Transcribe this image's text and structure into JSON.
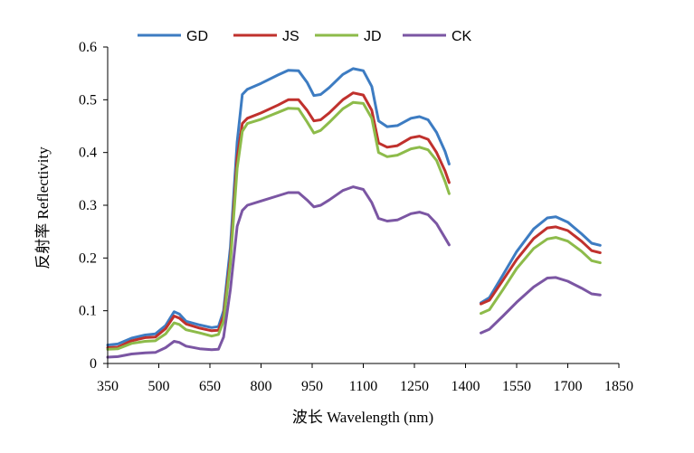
{
  "chart_data": {
    "type": "line",
    "title": "",
    "xlabel": "波长 Wavelength (nm)",
    "ylabel": "反射率 Reflectivity",
    "xlim": [
      350,
      1850
    ],
    "ylim": [
      0,
      0.6
    ],
    "xticks": [
      350,
      500,
      650,
      800,
      950,
      1100,
      1250,
      1400,
      1550,
      1700,
      1850
    ],
    "yticks": [
      0,
      0.1,
      0.2,
      0.3,
      0.4,
      0.5,
      0.6
    ],
    "ytick_labels": [
      "0",
      "0.1",
      "0.2",
      "0.3",
      "0.4",
      "0.5",
      "0.6"
    ],
    "grid": false,
    "legend_position": "top",
    "series": [
      {
        "name": "GD",
        "color": "#3d7cc2",
        "segments": [
          [
            [
              350,
              0.035
            ],
            [
              380,
              0.037
            ],
            [
              420,
              0.048
            ],
            [
              460,
              0.054
            ],
            [
              490,
              0.056
            ],
            [
              520,
              0.072
            ],
            [
              545,
              0.098
            ],
            [
              560,
              0.094
            ],
            [
              580,
              0.08
            ],
            [
              620,
              0.073
            ],
            [
              655,
              0.068
            ],
            [
              675,
              0.07
            ],
            [
              690,
              0.1
            ],
            [
              710,
              0.22
            ],
            [
              730,
              0.42
            ],
            [
              745,
              0.51
            ],
            [
              760,
              0.52
            ],
            [
              800,
              0.531
            ],
            [
              850,
              0.547
            ],
            [
              880,
              0.556
            ],
            [
              910,
              0.555
            ],
            [
              935,
              0.533
            ],
            [
              955,
              0.508
            ],
            [
              975,
              0.51
            ],
            [
              1000,
              0.523
            ],
            [
              1040,
              0.548
            ],
            [
              1070,
              0.559
            ],
            [
              1100,
              0.555
            ],
            [
              1125,
              0.525
            ],
            [
              1145,
              0.46
            ],
            [
              1170,
              0.449
            ],
            [
              1200,
              0.451
            ],
            [
              1240,
              0.465
            ],
            [
              1265,
              0.468
            ],
            [
              1290,
              0.462
            ],
            [
              1315,
              0.438
            ],
            [
              1340,
              0.402
            ],
            [
              1352,
              0.378
            ]
          ],
          [
            [
              1445,
              0.115
            ],
            [
              1470,
              0.125
            ],
            [
              1510,
              0.168
            ],
            [
              1550,
              0.212
            ],
            [
              1600,
              0.255
            ],
            [
              1640,
              0.276
            ],
            [
              1665,
              0.278
            ],
            [
              1700,
              0.268
            ],
            [
              1740,
              0.246
            ],
            [
              1770,
              0.228
            ],
            [
              1795,
              0.224
            ]
          ]
        ]
      },
      {
        "name": "JS",
        "color": "#c0312d",
        "segments": [
          [
            [
              350,
              0.03
            ],
            [
              380,
              0.031
            ],
            [
              420,
              0.043
            ],
            [
              460,
              0.049
            ],
            [
              490,
              0.05
            ],
            [
              520,
              0.066
            ],
            [
              545,
              0.09
            ],
            [
              560,
              0.086
            ],
            [
              580,
              0.075
            ],
            [
              620,
              0.067
            ],
            [
              655,
              0.062
            ],
            [
              675,
              0.063
            ],
            [
              690,
              0.09
            ],
            [
              710,
              0.2
            ],
            [
              730,
              0.39
            ],
            [
              745,
              0.455
            ],
            [
              760,
              0.465
            ],
            [
              800,
              0.475
            ],
            [
              850,
              0.49
            ],
            [
              880,
              0.5
            ],
            [
              910,
              0.5
            ],
            [
              935,
              0.48
            ],
            [
              955,
              0.46
            ],
            [
              975,
              0.462
            ],
            [
              1000,
              0.475
            ],
            [
              1040,
              0.5
            ],
            [
              1070,
              0.513
            ],
            [
              1100,
              0.509
            ],
            [
              1125,
              0.48
            ],
            [
              1145,
              0.418
            ],
            [
              1170,
              0.41
            ],
            [
              1200,
              0.413
            ],
            [
              1240,
              0.428
            ],
            [
              1265,
              0.431
            ],
            [
              1290,
              0.425
            ],
            [
              1315,
              0.4
            ],
            [
              1340,
              0.365
            ],
            [
              1352,
              0.343
            ]
          ],
          [
            [
              1445,
              0.113
            ],
            [
              1470,
              0.12
            ],
            [
              1510,
              0.158
            ],
            [
              1550,
              0.197
            ],
            [
              1600,
              0.237
            ],
            [
              1640,
              0.257
            ],
            [
              1665,
              0.259
            ],
            [
              1700,
              0.252
            ],
            [
              1740,
              0.232
            ],
            [
              1770,
              0.214
            ],
            [
              1795,
              0.21
            ]
          ]
        ]
      },
      {
        "name": "JD",
        "color": "#8dbb4a",
        "segments": [
          [
            [
              350,
              0.027
            ],
            [
              380,
              0.028
            ],
            [
              420,
              0.038
            ],
            [
              460,
              0.042
            ],
            [
              490,
              0.043
            ],
            [
              520,
              0.056
            ],
            [
              545,
              0.077
            ],
            [
              560,
              0.074
            ],
            [
              580,
              0.064
            ],
            [
              620,
              0.058
            ],
            [
              655,
              0.052
            ],
            [
              675,
              0.055
            ],
            [
              690,
              0.08
            ],
            [
              710,
              0.19
            ],
            [
              730,
              0.37
            ],
            [
              745,
              0.44
            ],
            [
              760,
              0.455
            ],
            [
              800,
              0.463
            ],
            [
              850,
              0.476
            ],
            [
              880,
              0.484
            ],
            [
              910,
              0.483
            ],
            [
              935,
              0.458
            ],
            [
              955,
              0.437
            ],
            [
              975,
              0.442
            ],
            [
              1000,
              0.457
            ],
            [
              1040,
              0.483
            ],
            [
              1070,
              0.495
            ],
            [
              1100,
              0.493
            ],
            [
              1125,
              0.465
            ],
            [
              1145,
              0.4
            ],
            [
              1170,
              0.392
            ],
            [
              1200,
              0.395
            ],
            [
              1240,
              0.407
            ],
            [
              1265,
              0.41
            ],
            [
              1290,
              0.405
            ],
            [
              1315,
              0.385
            ],
            [
              1340,
              0.345
            ],
            [
              1352,
              0.322
            ]
          ],
          [
            [
              1445,
              0.095
            ],
            [
              1470,
              0.102
            ],
            [
              1510,
              0.14
            ],
            [
              1550,
              0.18
            ],
            [
              1600,
              0.218
            ],
            [
              1640,
              0.236
            ],
            [
              1665,
              0.239
            ],
            [
              1700,
              0.232
            ],
            [
              1740,
              0.213
            ],
            [
              1770,
              0.195
            ],
            [
              1795,
              0.191
            ]
          ]
        ]
      },
      {
        "name": "CK",
        "color": "#7b56a3",
        "segments": [
          [
            [
              350,
              0.012
            ],
            [
              380,
              0.013
            ],
            [
              420,
              0.018
            ],
            [
              460,
              0.02
            ],
            [
              490,
              0.021
            ],
            [
              520,
              0.03
            ],
            [
              545,
              0.042
            ],
            [
              560,
              0.04
            ],
            [
              580,
              0.033
            ],
            [
              620,
              0.028
            ],
            [
              655,
              0.026
            ],
            [
              675,
              0.027
            ],
            [
              690,
              0.05
            ],
            [
              710,
              0.14
            ],
            [
              730,
              0.26
            ],
            [
              745,
              0.29
            ],
            [
              760,
              0.3
            ],
            [
              800,
              0.308
            ],
            [
              850,
              0.318
            ],
            [
              880,
              0.324
            ],
            [
              910,
              0.324
            ],
            [
              935,
              0.31
            ],
            [
              955,
              0.297
            ],
            [
              975,
              0.3
            ],
            [
              1000,
              0.31
            ],
            [
              1040,
              0.328
            ],
            [
              1070,
              0.335
            ],
            [
              1100,
              0.33
            ],
            [
              1125,
              0.305
            ],
            [
              1145,
              0.275
            ],
            [
              1170,
              0.27
            ],
            [
              1200,
              0.272
            ],
            [
              1240,
              0.284
            ],
            [
              1265,
              0.287
            ],
            [
              1290,
              0.282
            ],
            [
              1315,
              0.265
            ],
            [
              1340,
              0.238
            ],
            [
              1352,
              0.225
            ]
          ],
          [
            [
              1445,
              0.058
            ],
            [
              1470,
              0.065
            ],
            [
              1510,
              0.09
            ],
            [
              1550,
              0.116
            ],
            [
              1600,
              0.145
            ],
            [
              1640,
              0.162
            ],
            [
              1665,
              0.163
            ],
            [
              1700,
              0.156
            ],
            [
              1740,
              0.143
            ],
            [
              1770,
              0.132
            ],
            [
              1795,
              0.13
            ]
          ]
        ]
      }
    ]
  }
}
